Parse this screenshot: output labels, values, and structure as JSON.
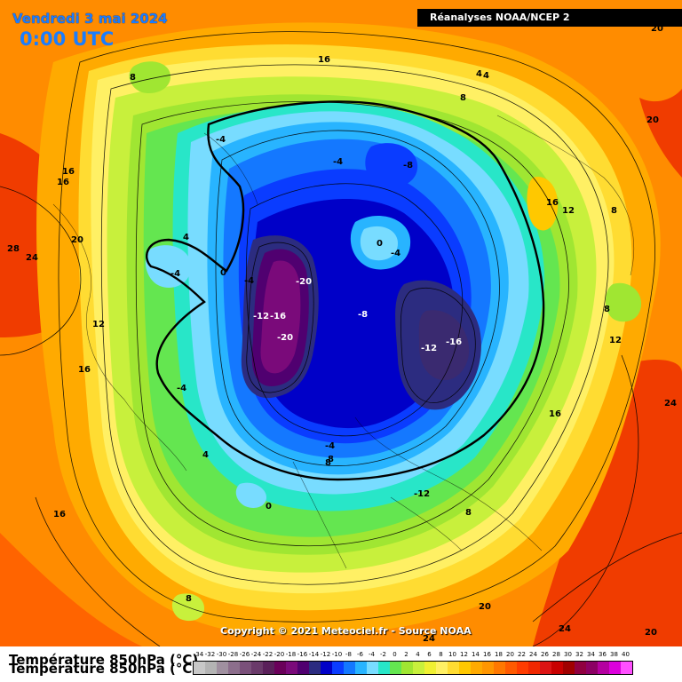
{
  "header": {
    "date": "Vendredi 3 mai 2024",
    "time": "0:00 UTC",
    "source": "Réanalyses NOAA/NCEP 2"
  },
  "copyright": "Copyright © 2021 Meteociel.fr - Source NOAA",
  "field_title": "Température 850hPa (°C)",
  "scale": {
    "ticks": [
      "-34",
      "-32",
      "-30",
      "-28",
      "-26",
      "-24",
      "-22",
      "-20",
      "-18",
      "-16",
      "-14",
      "-12",
      "-10",
      "-8",
      "-6",
      "-4",
      "-2",
      "0",
      "2",
      "4",
      "6",
      "8",
      "10",
      "12",
      "14",
      "16",
      "18",
      "20",
      "22",
      "24",
      "26",
      "28",
      "30",
      "32",
      "34",
      "36",
      "38",
      "40"
    ],
    "colors": [
      "#c8c8c8",
      "#b4b4b4",
      "#a090a0",
      "#8c6e8c",
      "#7a507a",
      "#6a3a6a",
      "#5a205a",
      "#6a005a",
      "#7a0a7a",
      "#500070",
      "#2c2c80",
      "#0000c8",
      "#0a3cff",
      "#1478ff",
      "#28b4ff",
      "#78dcff",
      "#28e6c8",
      "#64e650",
      "#a0e632",
      "#c8f03c",
      "#f0f032",
      "#fff064",
      "#ffdc32",
      "#ffc800",
      "#ffaa00",
      "#ff9600",
      "#ff7800",
      "#ff5a00",
      "#ff3c00",
      "#f02800",
      "#dc1414",
      "#c80000",
      "#a00000",
      "#900040",
      "#8c0064",
      "#b400a0",
      "#dc00dc",
      "#ff50ff"
    ]
  },
  "map_labels": {
    "l1": "16",
    "l2": "4",
    "l3": "4",
    "l4": "8",
    "l5": "8",
    "l6": "-4",
    "l7": "-4",
    "l8": "-8",
    "l9": "20",
    "l10": "20",
    "l11": "16",
    "l12": "16",
    "l13": "28",
    "l14": "24",
    "l15": "20",
    "l16": "4",
    "l17": "0",
    "l18": "-4",
    "l19": "-4",
    "l20": "0",
    "l21": "-4",
    "l22": "-20",
    "l23": "-12",
    "l24": "-16",
    "l25": "-20",
    "l26": "-8",
    "l27": "-12",
    "l28": "-16",
    "l29": "16",
    "l30": "12",
    "l31": "8",
    "l32": "8",
    "l33": "12",
    "l34": "12",
    "l35": "16",
    "l36": "-4",
    "l37": "16",
    "l38": "24",
    "l39": "-4",
    "l40": "4",
    "l41": "8",
    "l42": "0",
    "l43": "-12",
    "l44": "8",
    "l45": "16",
    "l46": "8",
    "l47": "20",
    "l48": "24",
    "l49": "20",
    "l50": "24",
    "l51": "8"
  }
}
